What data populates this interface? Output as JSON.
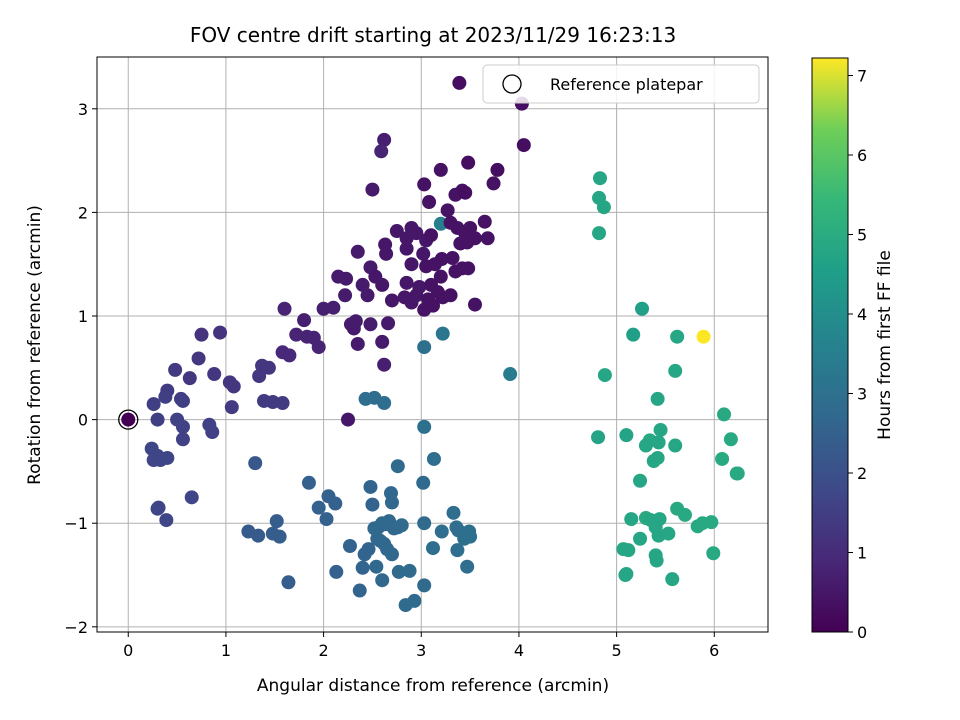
{
  "chart_data": {
    "type": "scatter",
    "title": "FOV centre drift starting at 2023/11/29 16:23:13",
    "xlabel": "Angular distance from reference (arcmin)",
    "ylabel": "Rotation from reference (arcmin)",
    "xlim": [
      -0.32,
      6.55
    ],
    "ylim": [
      -2.05,
      3.5
    ],
    "xticks": [
      0,
      1,
      2,
      3,
      4,
      5,
      6
    ],
    "yticks": [
      -2,
      -1,
      0,
      1,
      2,
      3
    ],
    "grid": true,
    "legend": {
      "position": "top-right",
      "entries": [
        "Reference platepar"
      ]
    },
    "reference_point": {
      "x": 0,
      "y": 0
    },
    "colorbar": {
      "label": "Hours from first FF file",
      "range": [
        0,
        7.22
      ],
      "ticks": [
        0,
        1,
        2,
        3,
        4,
        5,
        6,
        7
      ],
      "colormap": "viridis"
    },
    "points": [
      [
        3.39,
        3.25,
        0.3
      ],
      [
        4.03,
        3.05,
        0.3
      ],
      [
        4.05,
        2.65,
        0.3
      ],
      [
        2.62,
        2.7,
        0.7
      ],
      [
        2.59,
        2.59,
        0.8
      ],
      [
        3.48,
        2.48,
        0.3
      ],
      [
        3.78,
        2.41,
        0.3
      ],
      [
        3.2,
        2.41,
        0.4
      ],
      [
        3.74,
        2.28,
        0.4
      ],
      [
        3.03,
        2.27,
        0.4
      ],
      [
        2.5,
        2.22,
        0.6
      ],
      [
        3.35,
        2.17,
        0.4
      ],
      [
        3.42,
        2.21,
        0.4
      ],
      [
        3.45,
        2.19,
        0.3
      ],
      [
        3.08,
        2.1,
        0.4
      ],
      [
        3.27,
        2.02,
        0.4
      ],
      [
        3.2,
        1.89,
        3.5
      ],
      [
        2.9,
        1.85,
        0.5
      ],
      [
        3.65,
        1.91,
        0.4
      ],
      [
        3.3,
        1.9,
        0.4
      ],
      [
        3.5,
        1.85,
        0.4
      ],
      [
        3.37,
        1.85,
        0.4
      ],
      [
        2.75,
        1.82,
        0.5
      ],
      [
        2.95,
        1.8,
        0.5
      ],
      [
        3.45,
        1.8,
        0.4
      ],
      [
        3.55,
        1.75,
        0.4
      ],
      [
        3.68,
        1.75,
        0.4
      ],
      [
        2.85,
        1.75,
        0.5
      ],
      [
        3.05,
        1.73,
        0.5
      ],
      [
        3.4,
        1.7,
        0.4
      ],
      [
        3.47,
        1.71,
        0.4
      ],
      [
        3.1,
        1.78,
        0.4
      ],
      [
        2.63,
        1.69,
        0.5
      ],
      [
        2.85,
        1.65,
        0.5
      ],
      [
        3.02,
        1.6,
        0.5
      ],
      [
        2.35,
        1.62,
        0.6
      ],
      [
        2.64,
        1.6,
        0.5
      ],
      [
        3.21,
        1.55,
        0.4
      ],
      [
        3.32,
        1.56,
        0.4
      ],
      [
        2.9,
        1.5,
        0.5
      ],
      [
        3.14,
        1.5,
        0.4
      ],
      [
        3.42,
        1.46,
        0.4
      ],
      [
        3.48,
        1.46,
        0.4
      ],
      [
        3.05,
        1.48,
        0.4
      ],
      [
        3.35,
        1.43,
        0.4
      ],
      [
        2.48,
        1.47,
        0.6
      ],
      [
        2.53,
        1.38,
        0.5
      ],
      [
        2.15,
        1.38,
        0.6
      ],
      [
        2.23,
        1.36,
        0.6
      ],
      [
        3.2,
        1.38,
        0.4
      ],
      [
        2.4,
        1.3,
        0.6
      ],
      [
        2.6,
        1.3,
        0.5
      ],
      [
        2.85,
        1.32,
        0.5
      ],
      [
        2.98,
        1.28,
        0.5
      ],
      [
        3.1,
        1.3,
        0.4
      ],
      [
        2.95,
        1.2,
        0.5
      ],
      [
        3.17,
        1.23,
        0.4
      ],
      [
        2.45,
        1.2,
        0.6
      ],
      [
        2.83,
        1.18,
        0.5
      ],
      [
        2.7,
        1.15,
        0.5
      ],
      [
        3.07,
        1.16,
        0.4
      ],
      [
        3.22,
        1.18,
        0.4
      ],
      [
        2.22,
        1.2,
        0.6
      ],
      [
        2.9,
        1.13,
        0.5
      ],
      [
        3.3,
        1.2,
        0.4
      ],
      [
        2.0,
        1.07,
        0.7
      ],
      [
        2.1,
        1.08,
        0.7
      ],
      [
        3.12,
        1.1,
        0.4
      ],
      [
        3.55,
        1.11,
        0.4
      ],
      [
        1.6,
        1.07,
        0.8
      ],
      [
        2.33,
        0.95,
        0.6
      ],
      [
        2.66,
        0.93,
        0.6
      ],
      [
        2.28,
        0.92,
        0.6
      ],
      [
        2.48,
        0.92,
        0.6
      ],
      [
        2.31,
        0.88,
        0.6
      ],
      [
        3.03,
        1.06,
        0.4
      ],
      [
        1.8,
        0.96,
        0.7
      ],
      [
        1.72,
        0.82,
        0.8
      ],
      [
        1.83,
        0.8,
        0.8
      ],
      [
        1.9,
        0.79,
        0.8
      ],
      [
        1.95,
        0.7,
        0.8
      ],
      [
        2.35,
        0.73,
        0.6
      ],
      [
        2.6,
        0.75,
        0.6
      ],
      [
        1.58,
        0.65,
        0.9
      ],
      [
        1.65,
        0.62,
        0.9
      ],
      [
        2.62,
        0.53,
        0.7
      ],
      [
        0.75,
        0.82,
        1.2
      ],
      [
        0.94,
        0.84,
        1.2
      ],
      [
        0.72,
        0.59,
        1.3
      ],
      [
        0.63,
        0.4,
        1.3
      ],
      [
        0.88,
        0.44,
        1.3
      ],
      [
        1.37,
        0.52,
        1.3
      ],
      [
        1.44,
        0.5,
        1.3
      ],
      [
        1.34,
        0.42,
        1.3
      ],
      [
        1.04,
        0.36,
        1.3
      ],
      [
        1.08,
        0.32,
        1.3
      ],
      [
        0.48,
        0.48,
        1.4
      ],
      [
        0.4,
        0.28,
        1.4
      ],
      [
        0.38,
        0.22,
        1.5
      ],
      [
        0.54,
        0.2,
        1.5
      ],
      [
        0.56,
        0.18,
        1.5
      ],
      [
        0.26,
        0.15,
        1.5
      ],
      [
        1.39,
        0.18,
        1.4
      ],
      [
        1.48,
        0.17,
        1.4
      ],
      [
        1.58,
        0.16,
        1.4
      ],
      [
        1.06,
        0.12,
        1.4
      ],
      [
        0.3,
        0.0,
        1.5
      ],
      [
        0.5,
        0.0,
        1.6
      ],
      [
        0.56,
        -0.07,
        1.6
      ],
      [
        0.83,
        -0.05,
        1.6
      ],
      [
        0.86,
        -0.12,
        1.6
      ],
      [
        0.56,
        -0.19,
        1.6
      ],
      [
        0.24,
        -0.28,
        1.7
      ],
      [
        0.3,
        -0.35,
        1.7
      ],
      [
        0.26,
        -0.39,
        1.7
      ],
      [
        0.33,
        -0.39,
        1.7
      ],
      [
        0.4,
        -0.37,
        1.7
      ],
      [
        0.31,
        -0.85,
        1.7
      ],
      [
        0.3,
        -0.86,
        1.7
      ],
      [
        0.39,
        -0.97,
        1.7
      ],
      [
        0.65,
        -0.75,
        1.7
      ],
      [
        1.3,
        -0.42,
        2.2
      ],
      [
        1.23,
        -1.08,
        2.3
      ],
      [
        1.33,
        -1.12,
        2.3
      ],
      [
        1.52,
        -0.98,
        2.4
      ],
      [
        1.48,
        -1.1,
        2.4
      ],
      [
        1.55,
        -1.13,
        2.4
      ],
      [
        1.64,
        -1.57,
        2.4
      ],
      [
        1.85,
        -0.61,
        2.5
      ],
      [
        1.95,
        -0.85,
        2.5
      ],
      [
        2.03,
        -0.96,
        2.5
      ],
      [
        2.05,
        -0.74,
        2.5
      ],
      [
        2.12,
        -0.81,
        2.5
      ],
      [
        2.13,
        -1.47,
        2.5
      ],
      [
        2.25,
        0.0,
        0.5
      ],
      [
        2.27,
        -1.22,
        2.6
      ],
      [
        2.37,
        -1.65,
        2.6
      ],
      [
        2.42,
        -1.3,
        2.6
      ],
      [
        2.4,
        -1.43,
        2.6
      ],
      [
        2.46,
        -1.25,
        2.6
      ],
      [
        2.48,
        -0.65,
        2.6
      ],
      [
        2.5,
        -0.82,
        2.6
      ],
      [
        2.52,
        -1.05,
        2.7
      ],
      [
        2.56,
        -1.04,
        2.7
      ],
      [
        2.6,
        -1.0,
        2.7
      ],
      [
        2.63,
        -1.01,
        2.7
      ],
      [
        2.67,
        -0.98,
        2.7
      ],
      [
        2.69,
        -0.71,
        2.7
      ],
      [
        2.7,
        -0.8,
        2.7
      ],
      [
        2.72,
        -1.05,
        2.7
      ],
      [
        2.76,
        -1.04,
        2.7
      ],
      [
        2.58,
        -1.17,
        2.7
      ],
      [
        2.62,
        -1.2,
        2.7
      ],
      [
        2.55,
        -1.15,
        2.7
      ],
      [
        2.65,
        -1.25,
        2.7
      ],
      [
        2.7,
        -1.3,
        2.7
      ],
      [
        2.6,
        -1.55,
        2.7
      ],
      [
        2.54,
        -1.42,
        2.7
      ],
      [
        2.77,
        -1.47,
        2.8
      ],
      [
        2.88,
        -1.46,
        2.8
      ],
      [
        2.84,
        -1.79,
        2.8
      ],
      [
        2.93,
        -1.75,
        2.8
      ],
      [
        2.76,
        -0.45,
        2.8
      ],
      [
        2.8,
        -1.02,
        2.8
      ],
      [
        3.02,
        -0.61,
        2.8
      ],
      [
        3.03,
        -1.0,
        2.8
      ],
      [
        3.03,
        -1.6,
        2.8
      ],
      [
        3.03,
        -0.07,
        3.0
      ],
      [
        3.03,
        0.7,
        3.0
      ],
      [
        2.43,
        0.2,
        2.9
      ],
      [
        2.52,
        0.21,
        2.9
      ],
      [
        2.62,
        0.16,
        2.9
      ],
      [
        3.12,
        -1.24,
        2.9
      ],
      [
        3.13,
        -0.38,
        2.9
      ],
      [
        3.21,
        -1.08,
        2.9
      ],
      [
        3.33,
        -0.9,
        2.9
      ],
      [
        3.36,
        -1.04,
        2.9
      ],
      [
        3.38,
        -1.07,
        2.9
      ],
      [
        3.37,
        -1.26,
        2.9
      ],
      [
        3.47,
        -1.42,
        2.9
      ],
      [
        3.44,
        -1.15,
        3.0
      ],
      [
        3.5,
        -1.13,
        3.0
      ],
      [
        3.49,
        -1.08,
        3.0
      ],
      [
        3.22,
        0.83,
        3.2
      ],
      [
        3.91,
        0.44,
        3.4
      ],
      [
        4.83,
        2.33,
        4.8
      ],
      [
        4.82,
        2.14,
        4.8
      ],
      [
        4.87,
        2.05,
        4.8
      ],
      [
        4.82,
        1.8,
        4.8
      ],
      [
        5.26,
        1.07,
        4.6
      ],
      [
        5.17,
        0.82,
        4.6
      ],
      [
        5.62,
        0.8,
        4.8
      ],
      [
        5.89,
        0.8,
        7.22
      ],
      [
        5.6,
        0.47,
        4.8
      ],
      [
        4.88,
        0.43,
        4.8
      ],
      [
        5.42,
        0.2,
        4.8
      ],
      [
        6.1,
        0.05,
        4.9
      ],
      [
        4.81,
        -0.17,
        4.7
      ],
      [
        5.1,
        -0.15,
        4.7
      ],
      [
        5.45,
        -0.1,
        4.8
      ],
      [
        5.34,
        -0.2,
        4.9
      ],
      [
        5.3,
        -0.25,
        4.8
      ],
      [
        5.43,
        -0.22,
        4.8
      ],
      [
        5.6,
        -0.25,
        4.8
      ],
      [
        6.17,
        -0.19,
        4.9
      ],
      [
        5.38,
        -0.4,
        4.8
      ],
      [
        5.42,
        -0.37,
        4.8
      ],
      [
        6.08,
        -0.38,
        4.9
      ],
      [
        6.24,
        -0.52,
        4.9
      ],
      [
        6.23,
        -0.52,
        4.9
      ],
      [
        5.24,
        -0.59,
        4.8
      ],
      [
        5.62,
        -0.86,
        4.9
      ],
      [
        5.7,
        -0.92,
        4.9
      ],
      [
        5.3,
        -0.95,
        4.9
      ],
      [
        5.35,
        -0.97,
        4.8
      ],
      [
        5.44,
        -0.96,
        4.8
      ],
      [
        5.4,
        -1.04,
        4.8
      ],
      [
        5.15,
        -0.96,
        4.8
      ],
      [
        5.83,
        -1.03,
        4.9
      ],
      [
        5.88,
        -1.0,
        4.9
      ],
      [
        5.97,
        -0.99,
        4.9
      ],
      [
        5.43,
        -1.12,
        4.8
      ],
      [
        5.53,
        -1.1,
        4.8
      ],
      [
        5.24,
        -1.15,
        4.8
      ],
      [
        5.07,
        -1.25,
        4.8
      ],
      [
        5.12,
        -1.26,
        4.8
      ],
      [
        5.4,
        -1.31,
        4.8
      ],
      [
        5.41,
        -1.36,
        4.8
      ],
      [
        5.1,
        -1.49,
        4.8
      ],
      [
        5.57,
        -1.54,
        4.8
      ],
      [
        5.99,
        -1.29,
        4.9
      ],
      [
        5.09,
        -1.5,
        4.8
      ]
    ]
  }
}
